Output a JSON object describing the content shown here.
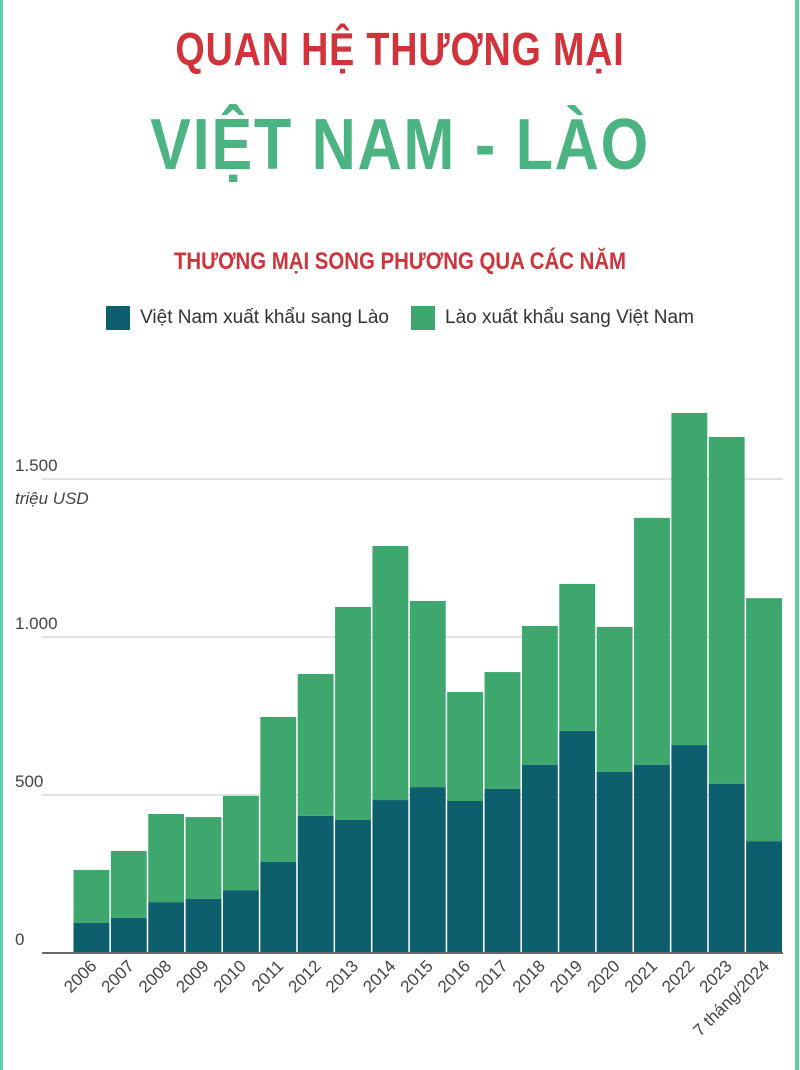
{
  "header": {
    "title_line1": "QUAN HỆ THƯƠNG MẠI",
    "title_line2": "VIỆT NAM - LÀO"
  },
  "chart_data": {
    "type": "bar",
    "stacked": true,
    "title": "THƯƠNG MẠI SONG PHƯƠNG QUA CÁC NĂM",
    "ylabel": "triệu USD",
    "xlabel": "",
    "ylim": [
      0,
      1750
    ],
    "yticks": [
      0,
      500,
      1000,
      1500
    ],
    "ytick_labels": [
      "0",
      "500",
      "1.000",
      "1.500"
    ],
    "grid": true,
    "legend_position": "top-center",
    "categories": [
      "2006",
      "2007",
      "2008",
      "2009",
      "2010",
      "2011",
      "2012",
      "2013",
      "2014",
      "2015",
      "2016",
      "2017",
      "2018",
      "2019",
      "2020",
      "2021",
      "2022",
      "2023",
      "7 tháng/2024"
    ],
    "series": [
      {
        "name": "Việt Nam xuất khẩu sang Lào",
        "color": "#0e5f6e",
        "values": [
          95,
          111,
          161,
          171,
          199,
          288,
          434,
          421,
          484,
          525,
          481,
          519,
          595,
          703,
          573,
          595,
          658,
          535,
          354
        ]
      },
      {
        "name": "Lào xuất khẩu sang Việt Nam",
        "color": "#3da76e",
        "values": [
          168,
          212,
          279,
          259,
          298,
          459,
          449,
          674,
          804,
          589,
          345,
          370,
          440,
          465,
          459,
          782,
          1051,
          1098,
          769
        ]
      }
    ]
  }
}
